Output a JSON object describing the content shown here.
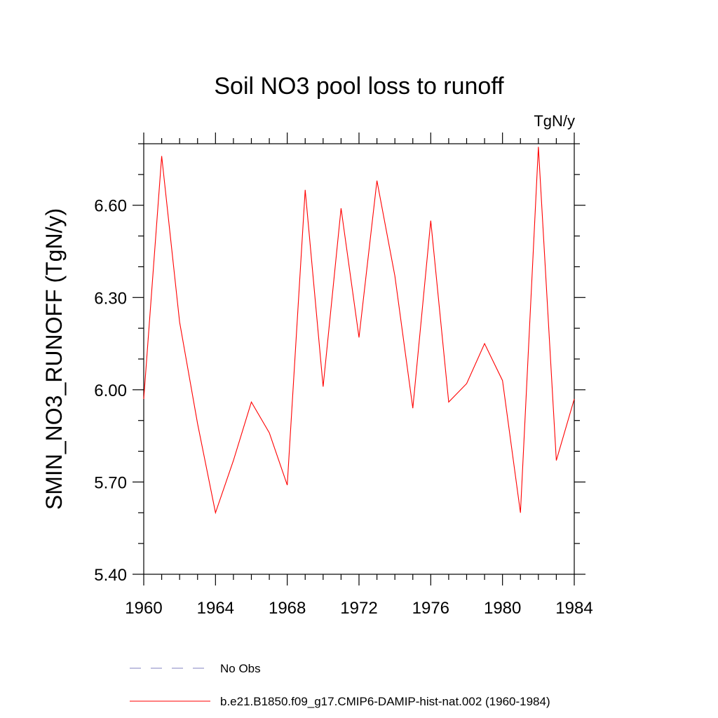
{
  "chart_data": {
    "type": "line",
    "title": "Soil NO3 pool loss to runoff",
    "units_label": "TgN/y",
    "ylabel": "SMIN_NO3_RUNOFF  (TgN/y)",
    "xlabel": "",
    "xlim": [
      1960,
      1984
    ],
    "ylim": [
      5.4,
      6.8
    ],
    "x_ticks": [
      1960,
      1964,
      1968,
      1972,
      1976,
      1980,
      1984
    ],
    "x_tick_labels": [
      "1960",
      "1964",
      "1968",
      "1972",
      "1976",
      "1980",
      "1984"
    ],
    "y_ticks": [
      5.4,
      5.7,
      6.0,
      6.3,
      6.6
    ],
    "y_tick_labels": [
      "5.40",
      "5.70",
      "6.00",
      "6.30",
      "6.60"
    ],
    "x_minor_step": 1,
    "y_minor_step": 0.1,
    "series": [
      {
        "name": "b.e21.B1850.f09_g17.CMIP6-DAMIP-hist-nat.002 (1960-1984)",
        "color": "#ff0000",
        "style": "solid",
        "x": [
          1960,
          1961,
          1962,
          1963,
          1964,
          1965,
          1966,
          1967,
          1968,
          1969,
          1970,
          1971,
          1972,
          1973,
          1974,
          1975,
          1976,
          1977,
          1978,
          1979,
          1980,
          1981,
          1982,
          1983,
          1984
        ],
        "y": [
          5.97,
          6.76,
          6.22,
          5.89,
          5.6,
          5.77,
          5.96,
          5.86,
          5.69,
          6.65,
          6.01,
          6.59,
          6.17,
          6.68,
          6.37,
          5.94,
          6.55,
          5.96,
          6.02,
          6.15,
          6.03,
          5.6,
          6.79,
          5.77,
          5.97
        ]
      }
    ],
    "legend": [
      {
        "label": "No Obs",
        "color": "#8080c0",
        "style": "dashed"
      },
      {
        "label": "b.e21.B1850.f09_g17.CMIP6-DAMIP-hist-nat.002 (1960-1984)",
        "color": "#ff0000",
        "style": "solid"
      }
    ],
    "legend_position": "bottom",
    "grid": false
  }
}
